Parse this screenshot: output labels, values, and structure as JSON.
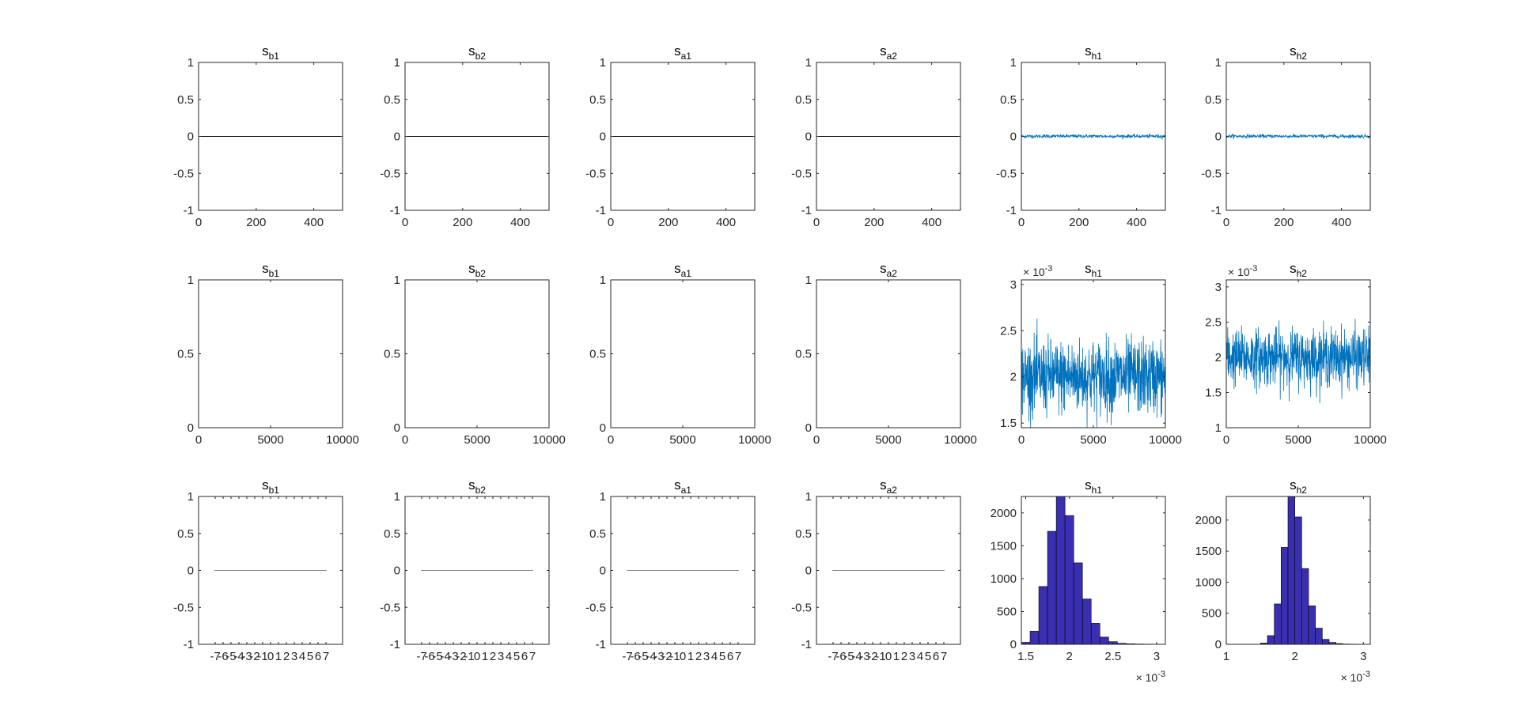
{
  "figure": {
    "colors": {
      "axis": "#262626",
      "trace": "#0072BD",
      "zero_line": "#000000",
      "histogram_fill": "#3A2FB0",
      "histogram_edge": "#000000",
      "flat_line": "#808080"
    }
  },
  "chart_data": [
    {
      "type": "line",
      "row": 1,
      "col": 1,
      "title": "s",
      "title_sub": "b1",
      "xlim": [
        0,
        500
      ],
      "ylim": [
        -1,
        1
      ],
      "xticks": [
        "0",
        "200",
        "400"
      ],
      "yticks": [
        "-1",
        "-0.5",
        "0",
        "0.5",
        "1"
      ],
      "series": [
        {
          "values": [
            [
              0,
              0
            ],
            [
              500,
              0
            ]
          ],
          "color": "#000000"
        }
      ]
    },
    {
      "type": "line",
      "row": 1,
      "col": 2,
      "title": "s",
      "title_sub": "b2",
      "xlim": [
        0,
        500
      ],
      "ylim": [
        -1,
        1
      ],
      "xticks": [
        "0",
        "200",
        "400"
      ],
      "yticks": [
        "-1",
        "-0.5",
        "0",
        "0.5",
        "1"
      ],
      "series": [
        {
          "values": [
            [
              0,
              0
            ],
            [
              500,
              0
            ]
          ],
          "color": "#000000"
        }
      ]
    },
    {
      "type": "line",
      "row": 1,
      "col": 3,
      "title": "s",
      "title_sub": "a1",
      "xlim": [
        0,
        500
      ],
      "ylim": [
        -1,
        1
      ],
      "xticks": [
        "0",
        "200",
        "400"
      ],
      "yticks": [
        "-1",
        "-0.5",
        "0",
        "0.5",
        "1"
      ],
      "series": [
        {
          "values": [
            [
              0,
              0
            ],
            [
              500,
              0
            ]
          ],
          "color": "#000000"
        }
      ]
    },
    {
      "type": "line",
      "row": 1,
      "col": 4,
      "title": "s",
      "title_sub": "a2",
      "xlim": [
        0,
        500
      ],
      "ylim": [
        -1,
        1
      ],
      "xticks": [
        "0",
        "200",
        "400"
      ],
      "yticks": [
        "-1",
        "-0.5",
        "0",
        "0.5",
        "1"
      ],
      "series": [
        {
          "values": [
            [
              0,
              0
            ],
            [
              500,
              0
            ]
          ],
          "color": "#000000"
        }
      ]
    },
    {
      "type": "line",
      "row": 1,
      "col": 5,
      "title": "s",
      "title_sub": "h1",
      "xlim": [
        0,
        500
      ],
      "ylim": [
        -1,
        1
      ],
      "xticks": [
        "0",
        "200",
        "400"
      ],
      "yticks": [
        "-1",
        "-0.5",
        "0",
        "0.5",
        "1"
      ],
      "series": [
        {
          "noise": {
            "center": 0.002,
            "spread": 0.012,
            "n": 500
          },
          "color": "#0072BD"
        }
      ]
    },
    {
      "type": "line",
      "row": 1,
      "col": 6,
      "title": "s",
      "title_sub": "h2",
      "xlim": [
        0,
        500
      ],
      "ylim": [
        -1,
        1
      ],
      "xticks": [
        "0",
        "200",
        "400"
      ],
      "yticks": [
        "-1",
        "-0.5",
        "0",
        "0.5",
        "1"
      ],
      "series": [
        {
          "noise": {
            "center": 0.002,
            "spread": 0.012,
            "n": 500
          },
          "color": "#0072BD"
        }
      ]
    },
    {
      "type": "line",
      "row": 2,
      "col": 1,
      "title": "s",
      "title_sub": "b1",
      "xlim": [
        0,
        10000
      ],
      "ylim": [
        0,
        1
      ],
      "xticks": [
        "0",
        "5000",
        "10000"
      ],
      "yticks": [
        "0",
        "0.5",
        "1"
      ],
      "series": []
    },
    {
      "type": "line",
      "row": 2,
      "col": 2,
      "title": "s",
      "title_sub": "b2",
      "xlim": [
        0,
        10000
      ],
      "ylim": [
        0,
        1
      ],
      "xticks": [
        "0",
        "5000",
        "10000"
      ],
      "yticks": [
        "0",
        "0.5",
        "1"
      ],
      "series": []
    },
    {
      "type": "line",
      "row": 2,
      "col": 3,
      "title": "s",
      "title_sub": "a1",
      "xlim": [
        0,
        10000
      ],
      "ylim": [
        0,
        1
      ],
      "xticks": [
        "0",
        "5000",
        "10000"
      ],
      "yticks": [
        "0",
        "0.5",
        "1"
      ],
      "series": []
    },
    {
      "type": "line",
      "row": 2,
      "col": 4,
      "title": "s",
      "title_sub": "a2",
      "xlim": [
        0,
        10000
      ],
      "ylim": [
        0,
        1
      ],
      "xticks": [
        "0",
        "5000",
        "10000"
      ],
      "yticks": [
        "0",
        "0.5",
        "1"
      ],
      "series": []
    },
    {
      "type": "line",
      "row": 2,
      "col": 5,
      "title": "s",
      "title_sub": "h1",
      "xlim": [
        0,
        10000
      ],
      "ylim": [
        1.45,
        3.05
      ],
      "y_exponent": "-3",
      "xticks": [
        "0",
        "5000",
        "10000"
      ],
      "yticks": [
        "1.5",
        "2",
        "2.5",
        "3"
      ],
      "series": [
        {
          "noise": {
            "center": 2.0,
            "spread": 0.2,
            "n": 700,
            "min": 1.45,
            "max": 3.05
          },
          "color": "#0072BD"
        }
      ]
    },
    {
      "type": "line",
      "row": 2,
      "col": 6,
      "title": "s",
      "title_sub": "h2",
      "xlim": [
        0,
        10000
      ],
      "ylim": [
        1,
        3.1
      ],
      "y_exponent": "-3",
      "xticks": [
        "0",
        "5000",
        "10000"
      ],
      "yticks": [
        "1",
        "1.5",
        "2",
        "2.5",
        "3"
      ],
      "series": [
        {
          "noise": {
            "center": 2.0,
            "spread": 0.2,
            "n": 700,
            "min": 1.35,
            "max": 3.1
          },
          "color": "#0072BD"
        }
      ]
    },
    {
      "type": "line",
      "row": 3,
      "col": 1,
      "title": "s",
      "title_sub": "b1",
      "xlim": [
        -9.5,
        9.5
      ],
      "ylim": [
        -1,
        1
      ],
      "xticks": [
        "-7",
        "-6",
        "-5",
        "-4",
        "-3",
        "-2",
        "-1",
        "0",
        "1",
        "2",
        "3",
        "4",
        "5",
        "6",
        "7"
      ],
      "yticks": [
        "-1",
        "-0.5",
        "0",
        "0.5",
        "1"
      ],
      "series": [
        {
          "values": [
            [
              -7.4,
              0
            ],
            [
              7.4,
              0
            ]
          ],
          "color": "#808080"
        }
      ]
    },
    {
      "type": "line",
      "row": 3,
      "col": 2,
      "title": "s",
      "title_sub": "b2",
      "xlim": [
        -9.5,
        9.5
      ],
      "ylim": [
        -1,
        1
      ],
      "xticks": [
        "-7",
        "-6",
        "-5",
        "-4",
        "-3",
        "-2",
        "-1",
        "0",
        "1",
        "2",
        "3",
        "4",
        "5",
        "6",
        "7"
      ],
      "yticks": [
        "-1",
        "-0.5",
        "0",
        "0.5",
        "1"
      ],
      "series": [
        {
          "values": [
            [
              -7.4,
              0
            ],
            [
              7.4,
              0
            ]
          ],
          "color": "#808080"
        }
      ]
    },
    {
      "type": "line",
      "row": 3,
      "col": 3,
      "title": "s",
      "title_sub": "a1",
      "xlim": [
        -9.5,
        9.5
      ],
      "ylim": [
        -1,
        1
      ],
      "xticks": [
        "-7",
        "-6",
        "-5",
        "-4",
        "-3",
        "-2",
        "-1",
        "0",
        "1",
        "2",
        "3",
        "4",
        "5",
        "6",
        "7"
      ],
      "yticks": [
        "-1",
        "-0.5",
        "0",
        "0.5",
        "1"
      ],
      "series": [
        {
          "values": [
            [
              -7.4,
              0
            ],
            [
              7.4,
              0
            ]
          ],
          "color": "#808080"
        }
      ]
    },
    {
      "type": "line",
      "row": 3,
      "col": 4,
      "title": "s",
      "title_sub": "a2",
      "xlim": [
        -9.5,
        9.5
      ],
      "ylim": [
        -1,
        1
      ],
      "xticks": [
        "-7",
        "-6",
        "-5",
        "-4",
        "-3",
        "-2",
        "-1",
        "0",
        "1",
        "2",
        "3",
        "4",
        "5",
        "6",
        "7"
      ],
      "yticks": [
        "-1",
        "-0.5",
        "0",
        "0.5",
        "1"
      ],
      "series": [
        {
          "values": [
            [
              -7.4,
              0
            ],
            [
              7.4,
              0
            ]
          ],
          "color": "#808080"
        }
      ]
    },
    {
      "type": "bar",
      "row": 3,
      "col": 5,
      "title": "s",
      "title_sub": "h1",
      "xlim": [
        1.45,
        3.1
      ],
      "ylim": [
        0,
        2250
      ],
      "x_exponent": "-3",
      "xticks": [
        "1.5",
        "2",
        "2.5",
        "3"
      ],
      "yticks": [
        "0",
        "500",
        "1000",
        "1500",
        "2000"
      ],
      "bin_edges": [
        1.45,
        1.55,
        1.65,
        1.75,
        1.85,
        1.95,
        2.05,
        2.15,
        2.25,
        2.35,
        2.45,
        2.55,
        2.65,
        2.75,
        2.85,
        2.95,
        3.05
      ],
      "values": [
        30,
        200,
        880,
        1720,
        2250,
        1960,
        1240,
        690,
        320,
        110,
        40,
        15,
        8,
        5,
        3,
        2
      ]
    },
    {
      "type": "bar",
      "row": 3,
      "col": 6,
      "title": "s",
      "title_sub": "h2",
      "xlim": [
        1,
        3.1
      ],
      "ylim": [
        0,
        2380
      ],
      "x_exponent": "-3",
      "xticks": [
        "1",
        "2",
        "3"
      ],
      "yticks": [
        "0",
        "500",
        "1000",
        "1500",
        "2000"
      ],
      "bin_edges": [
        1.5,
        1.6,
        1.7,
        1.8,
        1.9,
        2.0,
        2.1,
        2.2,
        2.3,
        2.4,
        2.5,
        2.6,
        2.7,
        2.8,
        2.9,
        3.0
      ],
      "values": [
        20,
        140,
        650,
        1560,
        2400,
        2050,
        1220,
        620,
        260,
        80,
        30,
        12,
        5,
        3,
        1
      ]
    }
  ]
}
